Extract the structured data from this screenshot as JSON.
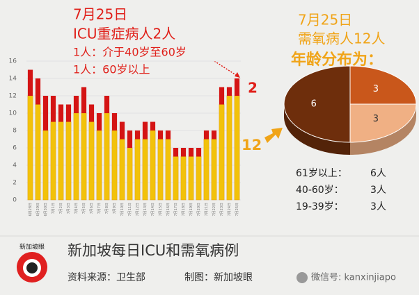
{
  "chart_data": [
    {
      "type": "bar",
      "stacked": true,
      "categories": [
        "6月28日",
        "6月29日",
        "6月30日",
        "7月1日",
        "7月2日",
        "7月3日",
        "7月4日",
        "7月5日",
        "7月6日",
        "7月7日",
        "7月8日",
        "7月9日",
        "7月10日",
        "7月11日",
        "7月12日",
        "7月13日",
        "7月14日",
        "7月15日",
        "7月16日",
        "7月17日",
        "7月18日",
        "7月19日",
        "7月20日",
        "7月21日",
        "7月22日",
        "7月23日",
        "7月24日",
        "7月25日"
      ],
      "series": [
        {
          "color": "#f2c20a",
          "values": [
            12,
            11,
            8,
            9,
            9,
            9,
            10,
            10,
            9,
            8,
            10,
            8,
            7,
            6,
            7,
            7,
            8,
            7,
            7,
            5,
            5,
            5,
            5,
            7,
            7,
            11,
            12,
            12
          ]
        },
        {
          "color": "#d41414",
          "values": [
            3,
            3,
            4,
            3,
            2,
            2,
            2,
            3,
            2,
            2,
            2,
            2,
            2,
            2,
            1,
            2,
            1,
            1,
            1,
            1,
            1,
            1,
            1,
            1,
            1,
            2,
            1,
            2
          ]
        }
      ],
      "ylim": [
        0,
        16
      ],
      "yticks": [
        0,
        2,
        4,
        6,
        8,
        10,
        12,
        14,
        16
      ],
      "annotations": [
        "7月25日",
        "ICU重症病人2人",
        "1人：介于40岁至60岁",
        "1人：60岁以上",
        "2",
        "12"
      ]
    },
    {
      "type": "pie",
      "title": [
        "7月25日",
        "需氧病人12人",
        "年龄分布为："
      ],
      "categories": [
        "61岁以上：",
        "40-60岁：",
        "19-39岁："
      ],
      "values": [
        6,
        3,
        3
      ],
      "table_labels": [
        "6人",
        "3人",
        "3人"
      ],
      "colors": [
        "#6e2e0c",
        "#c9571b",
        "#f0b084"
      ]
    }
  ],
  "footer": {
    "title": "新加坡每日ICU和需氧病例",
    "source": "资料来源：卫生部",
    "credit": "制图：新加坡眼",
    "wechat": "微信号: kanxinjiapo",
    "logo": "新加坡眼"
  }
}
